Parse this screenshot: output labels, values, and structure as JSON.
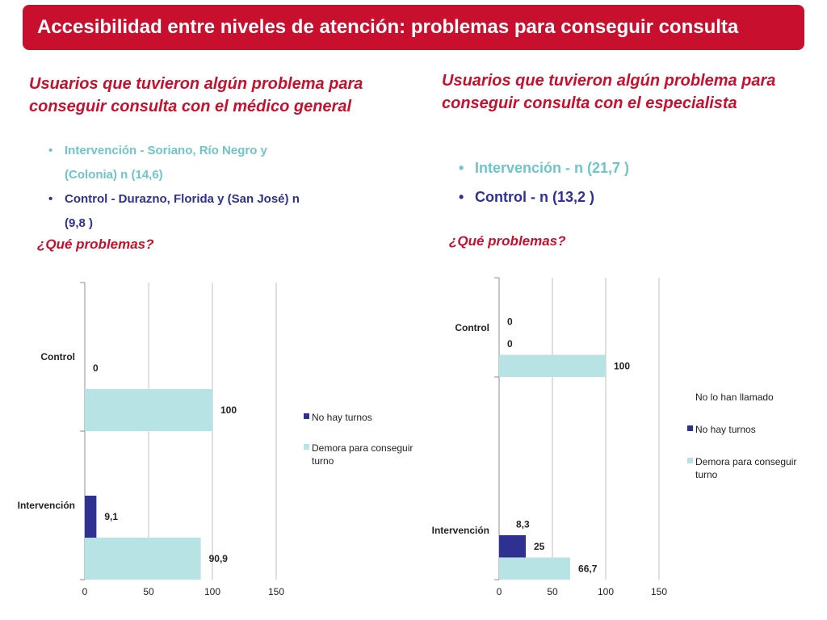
{
  "title": "Accesibilidad entre niveles de atención: problemas para conseguir consulta",
  "left": {
    "heading": "Usuarios que tuvieron algún problema para conseguir consulta con el médico general",
    "bullets": [
      {
        "text": "Intervención - Soriano, Río Negro y (Colonia) n (14,6)",
        "color": "#6fc5c8"
      },
      {
        "text": "Control - Durazno, Florida y (San José) n (9,8 )",
        "color": "#2e3192"
      }
    ],
    "question": "¿Qué problemas?"
  },
  "right": {
    "heading": "Usuarios que tuvieron algún problema para conseguir consulta con el especialista",
    "bullets": [
      {
        "text": "Intervención - n (21,7 )",
        "color": "#6fc5c8"
      },
      {
        "text": "Control - n (13,2 )",
        "color": "#2e3192"
      }
    ],
    "question": "¿Qué problemas?"
  },
  "colors": {
    "accent": "#c8102e",
    "navy": "#2e3192",
    "teal": "#b7e3e4"
  },
  "chart_data": [
    {
      "type": "bar",
      "orientation": "horizontal",
      "categories": [
        "Control",
        "Intervención"
      ],
      "series": [
        {
          "name": "No hay turnos",
          "color": "#2e3192",
          "values": [
            0,
            9.1
          ],
          "labels": [
            "0",
            "9,1"
          ]
        },
        {
          "name": "Demora para conseguir turno",
          "color": "#b7e3e4",
          "values": [
            100,
            90.9
          ],
          "labels": [
            "100",
            "90,9"
          ]
        }
      ],
      "xlim": [
        0,
        150
      ],
      "xticks": [
        "0",
        "50",
        "100",
        "150"
      ],
      "grid": true,
      "legend": "right"
    },
    {
      "type": "bar",
      "orientation": "horizontal",
      "categories": [
        "Control",
        "Intervención"
      ],
      "series": [
        {
          "name": "No lo han llamado",
          "color": "none",
          "values": [
            0,
            8.3
          ],
          "labels": [
            "0",
            "8,3"
          ]
        },
        {
          "name": "No hay turnos",
          "color": "#2e3192",
          "values": [
            0,
            25
          ],
          "labels": [
            "0",
            "25"
          ]
        },
        {
          "name": "Demora para conseguir turno",
          "color": "#b7e3e4",
          "values": [
            100,
            66.7
          ],
          "labels": [
            "100",
            "66,7"
          ]
        }
      ],
      "xlim": [
        0,
        150
      ],
      "xticks": [
        "0",
        "50",
        "100",
        "150"
      ],
      "grid": true,
      "legend": "right"
    }
  ]
}
